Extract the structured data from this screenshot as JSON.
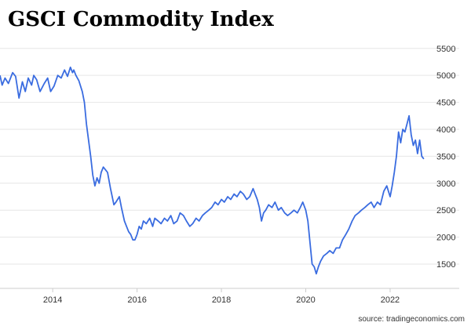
{
  "source": "source: tradingeconomics.com",
  "chart_data": {
    "type": "line",
    "title": "GSCI Commodity Index",
    "xlabel": "",
    "ylabel": "",
    "xlim": [
      2012.75,
      2022.95
    ],
    "ylim": [
      1050,
      5700
    ],
    "grid": "horizontal",
    "line_color": "#3a6ce0",
    "x_ticks": [
      2014,
      2016,
      2018,
      2020,
      2022
    ],
    "x_tick_labels": [
      "2014",
      "2016",
      "2018",
      "2020",
      "2022"
    ],
    "y_ticks": [
      1500,
      2000,
      2500,
      3000,
      3500,
      4000,
      4500,
      5000,
      5500
    ],
    "y_tick_labels": [
      "1500",
      "2000",
      "2500",
      "3000",
      "3500",
      "4000",
      "4500",
      "5000",
      "5500"
    ],
    "series": [
      {
        "name": "",
        "x": [
          2012.75,
          2012.8,
          2012.87,
          2012.95,
          2013.05,
          2013.12,
          2013.2,
          2013.28,
          2013.35,
          2013.42,
          2013.5,
          2013.55,
          2013.62,
          2013.7,
          2013.8,
          2013.88,
          2013.95,
          2014.03,
          2014.12,
          2014.2,
          2014.28,
          2014.35,
          2014.42,
          2014.47,
          2014.5,
          2014.55,
          2014.62,
          2014.7,
          2014.75,
          2014.8,
          2014.85,
          2014.9,
          2014.95,
          2015.0,
          2015.05,
          2015.1,
          2015.15,
          2015.2,
          2015.25,
          2015.3,
          2015.37,
          2015.45,
          2015.5,
          2015.58,
          2015.63,
          2015.7,
          2015.75,
          2015.8,
          2015.85,
          2015.9,
          2015.95,
          2016.0,
          2016.05,
          2016.1,
          2016.15,
          2016.22,
          2016.3,
          2016.37,
          2016.42,
          2016.5,
          2016.57,
          2016.65,
          2016.72,
          2016.8,
          2016.87,
          2016.95,
          2017.02,
          2017.1,
          2017.17,
          2017.25,
          2017.32,
          2017.4,
          2017.47,
          2017.55,
          2017.62,
          2017.7,
          2017.77,
          2017.85,
          2017.92,
          2018.0,
          2018.07,
          2018.15,
          2018.22,
          2018.3,
          2018.37,
          2018.45,
          2018.52,
          2018.6,
          2018.67,
          2018.75,
          2018.8,
          2018.85,
          2018.9,
          2018.95,
          2019.0,
          2019.05,
          2019.12,
          2019.2,
          2019.27,
          2019.35,
          2019.42,
          2019.5,
          2019.57,
          2019.65,
          2019.72,
          2019.8,
          2019.87,
          2019.93,
          2020.0,
          2020.05,
          2020.1,
          2020.15,
          2020.2,
          2020.25,
          2020.3,
          2020.35,
          2020.42,
          2020.5,
          2020.57,
          2020.65,
          2020.72,
          2020.8,
          2020.87,
          2020.95,
          2021.02,
          2021.1,
          2021.17,
          2021.25,
          2021.32,
          2021.4,
          2021.47,
          2021.55,
          2021.62,
          2021.7,
          2021.77,
          2021.85,
          2021.92,
          2022.0,
          2022.05,
          2022.1,
          2022.15,
          2022.2,
          2022.25,
          2022.3,
          2022.35,
          2022.4,
          2022.45,
          2022.5,
          2022.55,
          2022.6,
          2022.65,
          2022.7,
          2022.75,
          2022.8
        ],
        "values": [
          5000,
          4820,
          4950,
          4850,
          5050,
          4980,
          4580,
          4880,
          4700,
          4950,
          4820,
          5000,
          4920,
          4700,
          4850,
          4950,
          4700,
          4800,
          5000,
          4950,
          5100,
          4980,
          5150,
          5050,
          5100,
          5000,
          4900,
          4700,
          4500,
          4100,
          3800,
          3500,
          3150,
          2950,
          3100,
          3000,
          3200,
          3300,
          3250,
          3200,
          2900,
          2600,
          2650,
          2750,
          2550,
          2300,
          2200,
          2100,
          2050,
          1950,
          1950,
          2050,
          2200,
          2150,
          2300,
          2250,
          2350,
          2200,
          2350,
          2300,
          2250,
          2350,
          2300,
          2400,
          2250,
          2300,
          2450,
          2400,
          2300,
          2200,
          2250,
          2350,
          2300,
          2400,
          2450,
          2500,
          2550,
          2650,
          2600,
          2700,
          2650,
          2750,
          2700,
          2800,
          2750,
          2850,
          2800,
          2700,
          2750,
          2900,
          2800,
          2700,
          2550,
          2300,
          2450,
          2500,
          2600,
          2550,
          2650,
          2500,
          2550,
          2450,
          2400,
          2450,
          2500,
          2450,
          2550,
          2650,
          2500,
          2300,
          1900,
          1500,
          1450,
          1320,
          1450,
          1550,
          1650,
          1700,
          1750,
          1700,
          1800,
          1800,
          1950,
          2050,
          2150,
          2300,
          2400,
          2450,
          2500,
          2550,
          2600,
          2650,
          2550,
          2650,
          2600,
          2850,
          2950,
          2750,
          2950,
          3200,
          3500,
          3950,
          3750,
          4000,
          3950,
          4100,
          4250,
          3900,
          3700,
          3800,
          3550,
          3800,
          3500,
          3450
        ]
      }
    ]
  }
}
